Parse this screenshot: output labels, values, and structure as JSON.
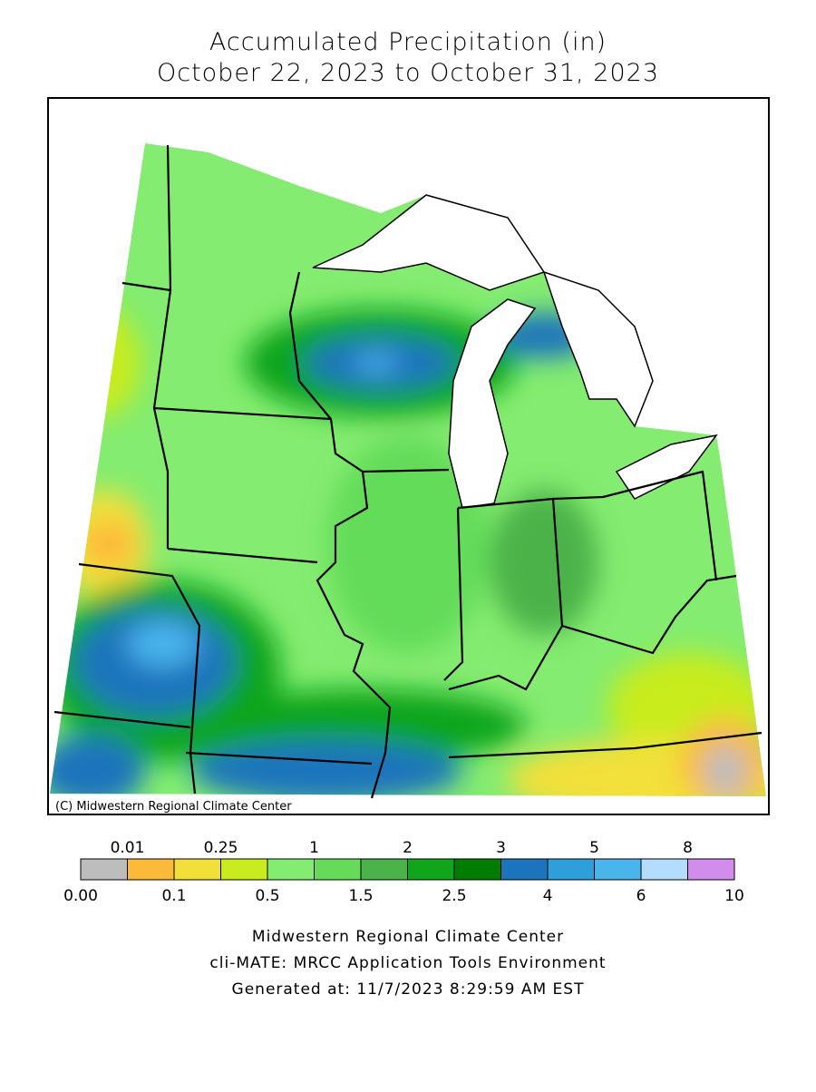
{
  "header": {
    "title": "Accumulated Precipitation (in)",
    "subtitle": "October 22, 2023 to October 31, 2023"
  },
  "map": {
    "credit": "(C) Midwestern Regional Climate Center"
  },
  "legend": {
    "colors": [
      "#bdbdbd",
      "#fdb93a",
      "#f2e03a",
      "#c8ec1e",
      "#84ec70",
      "#64dc5a",
      "#4cb24a",
      "#10a51a",
      "#007d00",
      "#1c75bc",
      "#2f9fdc",
      "#4ab4ec",
      "#b4dcfc",
      "#d28cec"
    ],
    "labels": [
      "0.00",
      "0.01",
      "0.1",
      "0.25",
      "0.5",
      "1",
      "1.5",
      "2",
      "2.5",
      "3",
      "4",
      "5",
      "6",
      "8",
      "10"
    ]
  },
  "footer": {
    "lines": [
      "Midwestern Regional Climate Center",
      "cli-MATE: MRCC Application Tools Environment",
      "Generated at: 11/7/2023 8:29:59 AM EST"
    ]
  }
}
